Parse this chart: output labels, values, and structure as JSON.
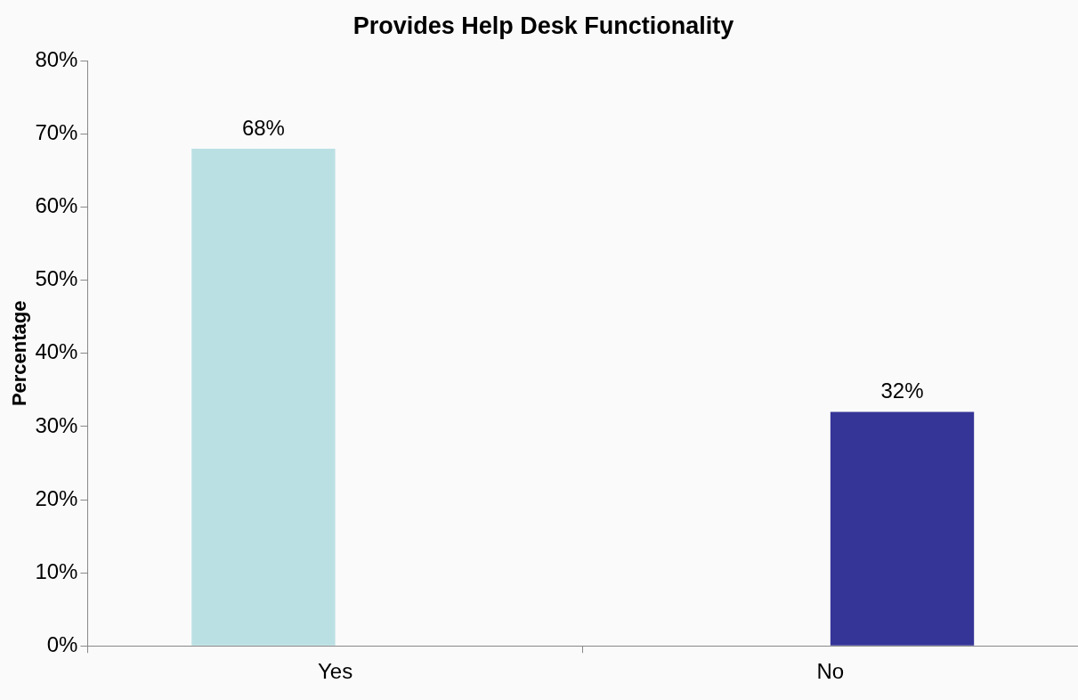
{
  "chart_data": {
    "type": "bar",
    "title": "Provides Help Desk Functionality",
    "ylabel": "Percentage",
    "categories": [
      "Yes",
      "No"
    ],
    "series": [
      {
        "color": "#bbe0e3",
        "values": [
          68,
          null
        ],
        "value_labels": [
          "68%",
          null
        ]
      },
      {
        "color": "#353597",
        "values": [
          null,
          32
        ],
        "value_labels": [
          null,
          "32%"
        ]
      }
    ],
    "ylim": [
      0,
      80
    ],
    "yticks": [
      {
        "value": 0,
        "label": "0%"
      },
      {
        "value": 10,
        "label": "10%"
      },
      {
        "value": 20,
        "label": "20%"
      },
      {
        "value": 30,
        "label": "30%"
      },
      {
        "value": 40,
        "label": "40%"
      },
      {
        "value": 50,
        "label": "50%"
      },
      {
        "value": 60,
        "label": "60%"
      },
      {
        "value": 70,
        "label": "70%"
      },
      {
        "value": 80,
        "label": "80%"
      }
    ],
    "grid": false,
    "legend": false
  }
}
